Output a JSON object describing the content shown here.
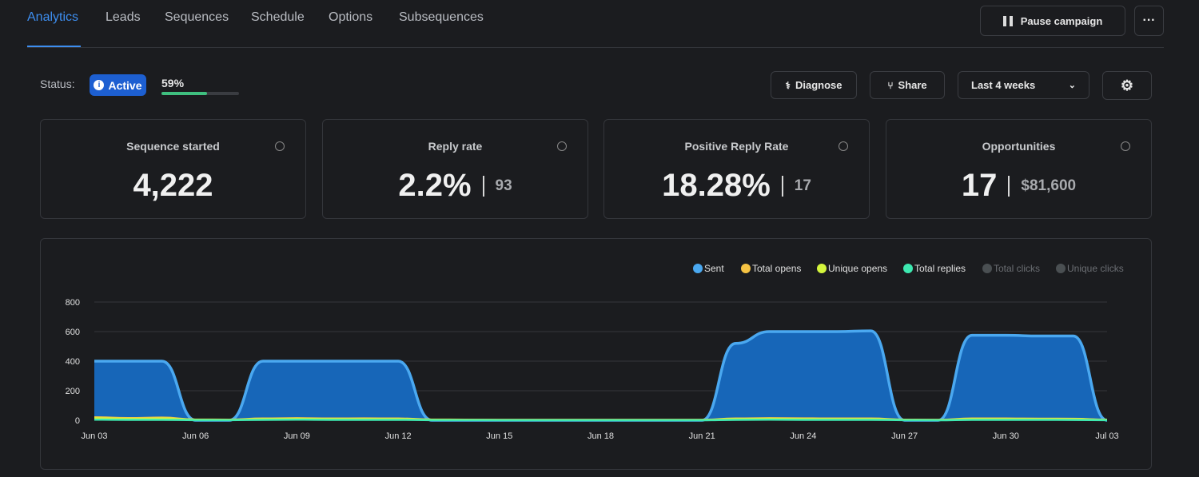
{
  "tabs": [
    "Analytics",
    "Leads",
    "Sequences",
    "Schedule",
    "Options",
    "Subsequences"
  ],
  "pause_button": "Pause campaign",
  "status": {
    "label": "Status:",
    "badge": "Active",
    "progress": 59,
    "progress_label": "59%"
  },
  "toolbar": {
    "diagnose": "Diagnose",
    "share": "Share",
    "range": "Last 4 weeks"
  },
  "stats": [
    {
      "title": "Sequence started",
      "value": "4,222"
    },
    {
      "title": "Reply rate",
      "value": "2.2%",
      "detail": "93"
    },
    {
      "title": "Positive Reply Rate",
      "value": "18.28%",
      "detail": "17"
    },
    {
      "title": "Opportunities",
      "value": "17",
      "detail": "$81,600"
    }
  ],
  "chart_data": {
    "type": "area",
    "categories": [
      "Jun 03",
      null,
      null,
      "Jun 06",
      null,
      null,
      "Jun 09",
      null,
      null,
      "Jun 12",
      null,
      null,
      "Jun 15",
      null,
      null,
      "Jun 18",
      null,
      null,
      "Jun 21",
      null,
      null,
      "Jun 24",
      null,
      null,
      "Jun 27",
      null,
      null,
      "Jun 30",
      null,
      null,
      "Jul 03"
    ],
    "ylim": [
      0,
      800
    ],
    "yticks": [
      0,
      200,
      400,
      600,
      800
    ],
    "grid": true,
    "legend": "top-right",
    "series": [
      {
        "name": "Sent",
        "color": "#4aa8f0",
        "fill": "#1766b8",
        "values": [
          400,
          400,
          400,
          0,
          0,
          400,
          400,
          400,
          400,
          400,
          0,
          0,
          0,
          0,
          0,
          0,
          0,
          0,
          0,
          520,
          600,
          600,
          600,
          605,
          0,
          0,
          575,
          575,
          570,
          570,
          0
        ]
      },
      {
        "name": "Total opens",
        "color": "#f6c343",
        "values": [
          20,
          15,
          18,
          5,
          4,
          12,
          14,
          12,
          13,
          12,
          5,
          4,
          3,
          3,
          3,
          3,
          3,
          3,
          3,
          12,
          14,
          13,
          12,
          12,
          4,
          3,
          12,
          12,
          11,
          10,
          4
        ]
      },
      {
        "name": "Unique opens",
        "color": "#d4f53c",
        "values": [
          14,
          10,
          12,
          4,
          3,
          9,
          10,
          9,
          9,
          9,
          4,
          3,
          2,
          2,
          2,
          2,
          2,
          2,
          2,
          9,
          10,
          9,
          9,
          9,
          3,
          2,
          9,
          9,
          8,
          8,
          3
        ]
      },
      {
        "name": "Total replies",
        "color": "#3de8b0",
        "values": [
          4,
          3,
          3,
          1,
          1,
          3,
          4,
          3,
          3,
          3,
          1,
          1,
          0,
          0,
          0,
          0,
          0,
          0,
          0,
          3,
          4,
          3,
          3,
          3,
          1,
          0,
          3,
          3,
          3,
          2,
          1
        ]
      }
    ],
    "hidden_series": [
      {
        "name": "Total clicks",
        "color": "#4a4f52"
      },
      {
        "name": "Unique clicks",
        "color": "#4a4f52"
      }
    ]
  }
}
